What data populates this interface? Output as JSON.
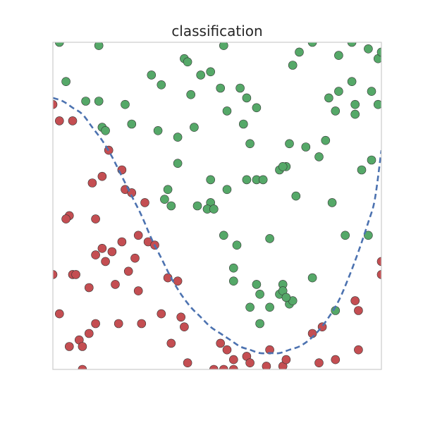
{
  "chart_data": {
    "type": "scatter",
    "title": "classification",
    "xlabel": "",
    "ylabel": "",
    "xlim": [
      0,
      1
    ],
    "ylim": [
      0,
      1
    ],
    "grid": false,
    "legend": "none",
    "colors": {
      "class_a": "#c44e52",
      "class_b": "#55a868",
      "boundary": "#4c72b0",
      "frame": "#cccccc"
    },
    "series": [
      {
        "values": [
          [
            0.0,
            0.81
          ],
          [
            0.02,
            0.76
          ],
          [
            0.06,
            0.76
          ],
          [
            0.17,
            0.67
          ],
          [
            0.21,
            0.61
          ],
          [
            0.12,
            0.57
          ],
          [
            0.15,
            0.59
          ],
          [
            0.22,
            0.55
          ],
          [
            0.24,
            0.54
          ],
          [
            0.28,
            0.51
          ],
          [
            0.05,
            0.47
          ],
          [
            0.04,
            0.46
          ],
          [
            0.13,
            0.46
          ],
          [
            0.26,
            0.41
          ],
          [
            0.21,
            0.39
          ],
          [
            0.29,
            0.39
          ],
          [
            0.31,
            0.38
          ],
          [
            0.13,
            0.35
          ],
          [
            0.15,
            0.37
          ],
          [
            0.18,
            0.36
          ],
          [
            0.16,
            0.33
          ],
          [
            0.25,
            0.34
          ],
          [
            0.0,
            0.29
          ],
          [
            0.06,
            0.29
          ],
          [
            0.07,
            0.29
          ],
          [
            0.23,
            0.3
          ],
          [
            0.19,
            0.26
          ],
          [
            0.11,
            0.25
          ],
          [
            0.35,
            0.28
          ],
          [
            0.38,
            0.27
          ],
          [
            0.26,
            0.24
          ],
          [
            0.02,
            0.17
          ],
          [
            0.33,
            0.17
          ],
          [
            0.39,
            0.16
          ],
          [
            0.4,
            0.13
          ],
          [
            0.13,
            0.14
          ],
          [
            0.2,
            0.14
          ],
          [
            0.27,
            0.14
          ],
          [
            0.11,
            0.11
          ],
          [
            0.08,
            0.09
          ],
          [
            0.36,
            0.08
          ],
          [
            0.05,
            0.07
          ],
          [
            0.09,
            0.07
          ],
          [
            0.51,
            0.08
          ],
          [
            0.53,
            0.06
          ],
          [
            0.55,
            0.03
          ],
          [
            0.52,
            0.0
          ],
          [
            0.49,
            0.0
          ],
          [
            0.41,
            0.02
          ],
          [
            0.59,
            0.04
          ],
          [
            0.66,
            0.06
          ],
          [
            0.6,
            0.02
          ],
          [
            0.65,
            0.01
          ],
          [
            0.7,
            0.01
          ],
          [
            0.71,
            0.03
          ],
          [
            0.79,
            0.11
          ],
          [
            0.81,
            0.02
          ],
          [
            0.82,
            0.13
          ],
          [
            0.92,
            0.21
          ],
          [
            0.93,
            0.18
          ],
          [
            0.93,
            0.06
          ],
          [
            1.0,
            0.29
          ],
          [
            1.0,
            0.33
          ],
          [
            0.86,
            0.03
          ],
          [
            0.09,
            0.0
          ],
          [
            0.55,
            0.0
          ]
        ]
      },
      {
        "values": [
          [
            0.02,
            1.0
          ],
          [
            0.14,
            0.99
          ],
          [
            0.04,
            0.88
          ],
          [
            0.1,
            0.82
          ],
          [
            0.14,
            0.82
          ],
          [
            0.15,
            0.74
          ],
          [
            0.16,
            0.73
          ],
          [
            0.22,
            0.81
          ],
          [
            0.24,
            0.75
          ],
          [
            0.3,
            0.9
          ],
          [
            0.33,
            0.87
          ],
          [
            0.4,
            0.95
          ],
          [
            0.41,
            0.94
          ],
          [
            0.45,
            0.9
          ],
          [
            0.48,
            0.91
          ],
          [
            0.52,
            0.99
          ],
          [
            0.43,
            0.74
          ],
          [
            0.38,
            0.71
          ],
          [
            0.32,
            0.73
          ],
          [
            0.42,
            0.84
          ],
          [
            0.51,
            0.86
          ],
          [
            0.53,
            0.79
          ],
          [
            0.57,
            0.86
          ],
          [
            0.59,
            0.83
          ],
          [
            0.62,
            0.8
          ],
          [
            0.58,
            0.75
          ],
          [
            0.6,
            0.69
          ],
          [
            0.53,
            0.55
          ],
          [
            0.48,
            0.51
          ],
          [
            0.44,
            0.5
          ],
          [
            0.47,
            0.49
          ],
          [
            0.49,
            0.49
          ],
          [
            0.35,
            0.55
          ],
          [
            0.34,
            0.52
          ],
          [
            0.36,
            0.5
          ],
          [
            0.38,
            0.63
          ],
          [
            0.48,
            0.58
          ],
          [
            0.59,
            0.58
          ],
          [
            0.62,
            0.58
          ],
          [
            0.64,
            0.58
          ],
          [
            0.69,
            0.61
          ],
          [
            0.71,
            0.62
          ],
          [
            0.72,
            0.69
          ],
          [
            0.7,
            0.62
          ],
          [
            0.74,
            0.53
          ],
          [
            0.77,
            0.68
          ],
          [
            0.81,
            0.65
          ],
          [
            0.83,
            0.7
          ],
          [
            0.85,
            0.51
          ],
          [
            0.84,
            0.83
          ],
          [
            0.86,
            0.79
          ],
          [
            0.87,
            0.85
          ],
          [
            0.91,
            0.88
          ],
          [
            0.92,
            0.81
          ],
          [
            0.92,
            0.78
          ],
          [
            0.94,
            0.61
          ],
          [
            0.97,
            0.64
          ],
          [
            0.97,
            0.85
          ],
          [
            0.99,
            0.81
          ],
          [
            0.75,
            0.97
          ],
          [
            0.73,
            0.93
          ],
          [
            0.79,
            1.0
          ],
          [
            0.87,
            0.96
          ],
          [
            0.91,
            1.0
          ],
          [
            0.96,
            0.98
          ],
          [
            0.99,
            0.95
          ],
          [
            1.0,
            0.97
          ],
          [
            0.96,
            0.41
          ],
          [
            0.89,
            0.41
          ],
          [
            0.86,
            0.18
          ],
          [
            0.7,
            0.26
          ],
          [
            0.72,
            0.2
          ],
          [
            0.73,
            0.21
          ],
          [
            0.66,
            0.4
          ],
          [
            0.56,
            0.38
          ],
          [
            0.52,
            0.41
          ],
          [
            0.55,
            0.31
          ],
          [
            0.55,
            0.27
          ],
          [
            0.63,
            0.23
          ],
          [
            0.66,
            0.19
          ],
          [
            0.62,
            0.26
          ],
          [
            0.69,
            0.23
          ],
          [
            0.79,
            0.28
          ],
          [
            0.6,
            0.19
          ],
          [
            0.63,
            0.14
          ],
          [
            0.7,
            0.24
          ],
          [
            0.71,
            0.22
          ]
        ]
      }
    ],
    "decision_boundary": [
      [
        0.0,
        0.83
      ],
      [
        0.03,
        0.82
      ],
      [
        0.06,
        0.8
      ],
      [
        0.09,
        0.78
      ],
      [
        0.12,
        0.74
      ],
      [
        0.15,
        0.7
      ],
      [
        0.18,
        0.65
      ],
      [
        0.21,
        0.59
      ],
      [
        0.24,
        0.53
      ],
      [
        0.27,
        0.47
      ],
      [
        0.3,
        0.4
      ],
      [
        0.33,
        0.34
      ],
      [
        0.36,
        0.28
      ],
      [
        0.39,
        0.23
      ],
      [
        0.42,
        0.19
      ],
      [
        0.45,
        0.16
      ],
      [
        0.48,
        0.13
      ],
      [
        0.51,
        0.11
      ],
      [
        0.54,
        0.09
      ],
      [
        0.57,
        0.07
      ],
      [
        0.6,
        0.06
      ],
      [
        0.63,
        0.05
      ],
      [
        0.66,
        0.05
      ],
      [
        0.69,
        0.05
      ],
      [
        0.72,
        0.06
      ],
      [
        0.75,
        0.07
      ],
      [
        0.78,
        0.09
      ],
      [
        0.81,
        0.12
      ],
      [
        0.84,
        0.16
      ],
      [
        0.87,
        0.21
      ],
      [
        0.9,
        0.28
      ],
      [
        0.93,
        0.36
      ],
      [
        0.96,
        0.45
      ],
      [
        0.98,
        0.52
      ],
      [
        1.0,
        0.67
      ]
    ]
  }
}
